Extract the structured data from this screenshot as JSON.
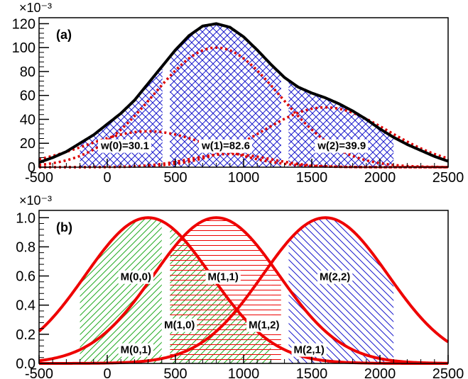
{
  "chart_data": [
    {
      "panel": "(a)",
      "type": "area",
      "xlim": [
        -500,
        2500
      ],
      "ylim": [
        0,
        125
      ],
      "y_exponent": "×10⁻³",
      "x_ticks": [
        -500,
        0,
        500,
        1000,
        1500,
        2000,
        2500
      ],
      "y_ticks": [
        0,
        20,
        40,
        60,
        80,
        100,
        120
      ],
      "x_tick_labels": [
        "-500",
        "0",
        "500",
        "1000",
        "1500",
        "2000",
        "2500"
      ],
      "y_tick_labels": [
        "0",
        "20",
        "40",
        "60",
        "80",
        "100",
        "120"
      ],
      "total_curve": {
        "x": [
          -500,
          -400,
          -300,
          -200,
          -100,
          0,
          100,
          200,
          300,
          400,
          500,
          600,
          700,
          800,
          900,
          1000,
          1100,
          1200,
          1300,
          1400,
          1500,
          1600,
          1700,
          1800,
          1900,
          2000,
          2100,
          2200,
          2300,
          2400,
          2500
        ],
        "y": [
          4,
          8,
          13,
          20,
          27,
          36,
          45,
          56,
          70,
          84,
          98,
          110,
          118,
          120,
          117,
          109,
          98,
          86,
          75,
          67,
          62,
          58,
          53,
          47,
          40,
          32,
          25,
          19,
          14,
          9,
          5
        ],
        "color": "#000000"
      },
      "components": [
        {
          "peak": 800,
          "sigma": 460,
          "amplitude": 100,
          "color": "#dd0000",
          "style": "dotted"
        },
        {
          "peak": 300,
          "sigma": 460,
          "amplitude": 30,
          "color": "#dd0000",
          "style": "dotted"
        },
        {
          "peak": 1600,
          "sigma": 460,
          "amplitude": 50,
          "color": "#dd0000",
          "style": "dotted"
        },
        {
          "peak": 900,
          "sigma": 300,
          "amplitude": 11,
          "color": "#dd0000",
          "style": "dotted"
        }
      ],
      "hatched_region": {
        "xmin": -200,
        "xmax": 2100,
        "color": "#1a1acc",
        "pattern": "crosshatch"
      },
      "gaps": [
        [
          405,
          460
        ],
        [
          1275,
          1330
        ]
      ],
      "annotations": [
        {
          "text": "w(0)=30.1",
          "x": 130,
          "y": 15
        },
        {
          "text": "w(1)=82.6",
          "x": 870,
          "y": 15
        },
        {
          "text": "w(2)=39.9",
          "x": 1720,
          "y": 15
        }
      ]
    },
    {
      "panel": "(b)",
      "type": "line",
      "xlim": [
        -500,
        2500
      ],
      "ylim": [
        0,
        1.05
      ],
      "y_exponent": "×10⁻³",
      "x_ticks": [
        -500,
        0,
        500,
        1000,
        1500,
        2000,
        2500
      ],
      "y_ticks": [
        0,
        0.2,
        0.4,
        0.6,
        0.8,
        1.0
      ],
      "x_tick_labels": [
        "-500",
        "0",
        "500",
        "1000",
        "1500",
        "2000",
        "2500"
      ],
      "y_tick_labels": [
        "0.0",
        "0.2",
        "0.4",
        "0.6",
        "0.8",
        "1.0"
      ],
      "series": [
        {
          "peak": 300,
          "sigma": 460,
          "amplitude": 1.0,
          "color": "#ee0000"
        },
        {
          "peak": 800,
          "sigma": 460,
          "amplitude": 1.0,
          "color": "#ee0000"
        },
        {
          "peak": 1600,
          "sigma": 460,
          "amplitude": 1.0,
          "color": "#ee0000"
        }
      ],
      "regions": [
        {
          "xmin": -200,
          "xmax": 400,
          "peak": 300,
          "color": "#22aa22",
          "pattern": "diagonal"
        },
        {
          "xmin": 460,
          "xmax": 1200,
          "peak": 300,
          "color": "#22aa22",
          "pattern": "diagonal"
        },
        {
          "xmin": 460,
          "xmax": 1200,
          "peak": 800,
          "color": "#ee0000",
          "pattern": "horizontal"
        },
        {
          "xmin": 1200,
          "xmax": 1280,
          "peak": 800,
          "color": "#ee0000",
          "pattern": "horizontal"
        },
        {
          "xmin": 1330,
          "xmax": 2100,
          "peak": 1600,
          "color": "#1a1acc",
          "pattern": "diagonal"
        }
      ],
      "gaps": [
        [
          405,
          460
        ],
        [
          1275,
          1330
        ]
      ],
      "annotations": [
        {
          "text": "M(0,0)",
          "x": 210,
          "y": 0.57
        },
        {
          "text": "M(1,1)",
          "x": 850,
          "y": 0.57
        },
        {
          "text": "M(2,2)",
          "x": 1670,
          "y": 0.57
        },
        {
          "text": "M(1,0)",
          "x": 530,
          "y": 0.24
        },
        {
          "text": "M(1,2)",
          "x": 1150,
          "y": 0.24
        },
        {
          "text": "M(0,1)",
          "x": 210,
          "y": 0.07
        },
        {
          "text": "M(2,1)",
          "x": 1480,
          "y": 0.07
        }
      ]
    }
  ]
}
